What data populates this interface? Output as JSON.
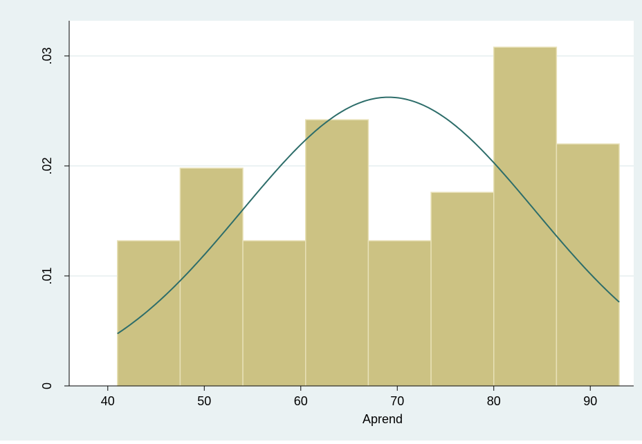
{
  "chart_data": {
    "type": "bar",
    "subtype": "histogram_with_normal_density",
    "xlabel": "Aprend",
    "ylabel": "",
    "xlim": [
      36,
      94.5
    ],
    "ylim": [
      0,
      0.0332
    ],
    "xticks": [
      40,
      50,
      60,
      70,
      80,
      90
    ],
    "xtick_labels": [
      "40",
      "50",
      "60",
      "70",
      "80",
      "90"
    ],
    "yticks": [
      0,
      0.01,
      0.02,
      0.03
    ],
    "ytick_labels": [
      "0",
      ".01",
      ".02",
      ".03"
    ],
    "grid": true,
    "bins": [
      {
        "x0": 41.0,
        "x1": 47.5,
        "density": 0.0132
      },
      {
        "x0": 47.5,
        "x1": 54.0,
        "density": 0.0198
      },
      {
        "x0": 54.0,
        "x1": 60.5,
        "density": 0.0132
      },
      {
        "x0": 60.5,
        "x1": 67.0,
        "density": 0.0242
      },
      {
        "x0": 67.0,
        "x1": 73.5,
        "density": 0.0132
      },
      {
        "x0": 73.5,
        "x1": 80.0,
        "density": 0.0176
      },
      {
        "x0": 80.0,
        "x1": 86.5,
        "density": 0.0308
      },
      {
        "x0": 86.5,
        "x1": 93.0,
        "density": 0.022
      }
    ],
    "normal_curve": {
      "mean": 69.1,
      "sd": 15.2,
      "x_range": [
        41.0,
        93.0
      ]
    },
    "colors": {
      "outer_background": "#eaf2f3",
      "plot_background": "#ffffff",
      "bar_fill": "#ccc283",
      "bar_edge": "#e8e1b8",
      "curve": "#2d6d6a",
      "grid": "#e5eeef",
      "axis": "#000000"
    }
  }
}
